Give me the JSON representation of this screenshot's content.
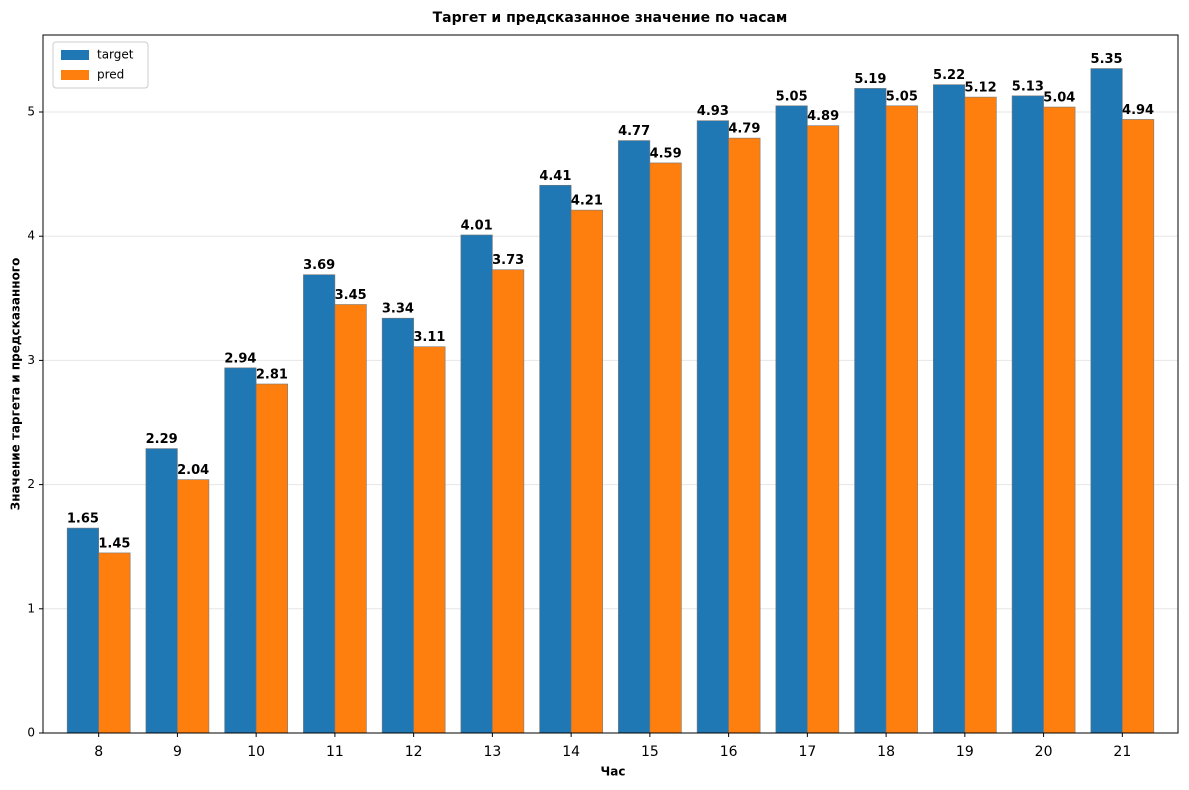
{
  "chart_data": {
    "type": "bar",
    "title": "Таргет и предсказанное значение по часам",
    "x_label": "Час",
    "y_label": "Значение таргета и предсказанного",
    "categories": [
      "8",
      "9",
      "10",
      "11",
      "12",
      "13",
      "14",
      "15",
      "16",
      "17",
      "18",
      "19",
      "20",
      "21"
    ],
    "series": [
      {
        "name": "target",
        "color": "#1f77b4",
        "values": [
          1.65,
          2.29,
          2.94,
          3.69,
          3.34,
          4.01,
          4.41,
          4.77,
          4.93,
          5.05,
          5.19,
          5.22,
          5.13,
          5.35
        ]
      },
      {
        "name": "pred",
        "color": "#ff7f0e",
        "values": [
          1.45,
          2.04,
          2.81,
          3.45,
          3.11,
          3.73,
          4.21,
          4.59,
          4.79,
          4.89,
          5.05,
          5.12,
          5.04,
          4.94
        ]
      }
    ],
    "ylim": [
      0,
      5.62
    ],
    "yticks": [
      0,
      1,
      2,
      3,
      4,
      5
    ],
    "grid": true,
    "legend": "upper-left"
  }
}
